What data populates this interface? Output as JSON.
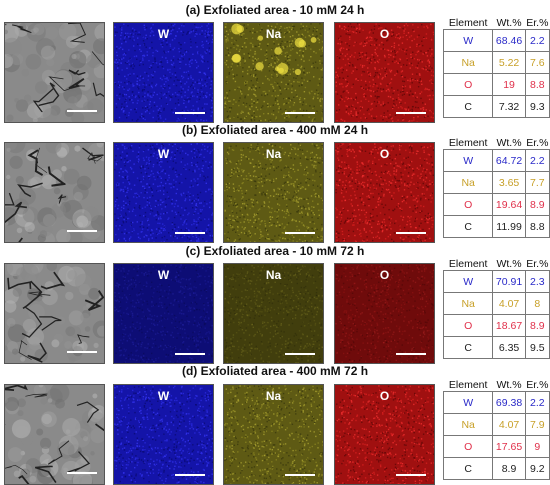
{
  "panels": [
    {
      "title": "(a) Exfoliated area - 10 mM 24 h",
      "maps": [
        "W",
        "Na",
        "O"
      ],
      "table": {
        "headers": [
          "Element",
          "Wt.%",
          "Er.%"
        ],
        "rows": [
          [
            "W",
            "68.46",
            "2.2"
          ],
          [
            "Na",
            "5.22",
            "7.6"
          ],
          [
            "O",
            "19",
            "8.8"
          ],
          [
            "C",
            "7.32",
            "9.3"
          ]
        ]
      }
    },
    {
      "title": "(b) Exfoliated area - 400 mM 24 h",
      "maps": [
        "W",
        "Na",
        "O"
      ],
      "table": {
        "headers": [
          "Element",
          "Wt.%",
          "Er.%"
        ],
        "rows": [
          [
            "W",
            "64.72",
            "2.2"
          ],
          [
            "Na",
            "3.65",
            "7.7"
          ],
          [
            "O",
            "19.64",
            "8.9"
          ],
          [
            "C",
            "11.99",
            "8.8"
          ]
        ]
      }
    },
    {
      "title": "(c) Exfoliated area - 10 mM 72 h",
      "maps": [
        "W",
        "Na",
        "O"
      ],
      "table": {
        "headers": [
          "Element",
          "Wt.%",
          "Er.%"
        ],
        "rows": [
          [
            "W",
            "70.91",
            "2.3"
          ],
          [
            "Na",
            "4.07",
            "8"
          ],
          [
            "O",
            "18.67",
            "8.9"
          ],
          [
            "C",
            "6.35",
            "9.5"
          ]
        ]
      }
    },
    {
      "title": "(d) Exfoliated area - 400 mM 72 h",
      "maps": [
        "W",
        "Na",
        "O"
      ],
      "table": {
        "headers": [
          "Element",
          "Wt.%",
          "Er.%"
        ],
        "rows": [
          [
            "W",
            "69.38",
            "2.2"
          ],
          [
            "Na",
            "4.07",
            "7.9"
          ],
          [
            "O",
            "17.65",
            "9"
          ],
          [
            "C",
            "8.9",
            "9.2"
          ]
        ]
      }
    }
  ],
  "colors": {
    "W": "#2a2ac8",
    "Na": "#c8a028",
    "O": "#e0304a",
    "C": "#222222"
  }
}
